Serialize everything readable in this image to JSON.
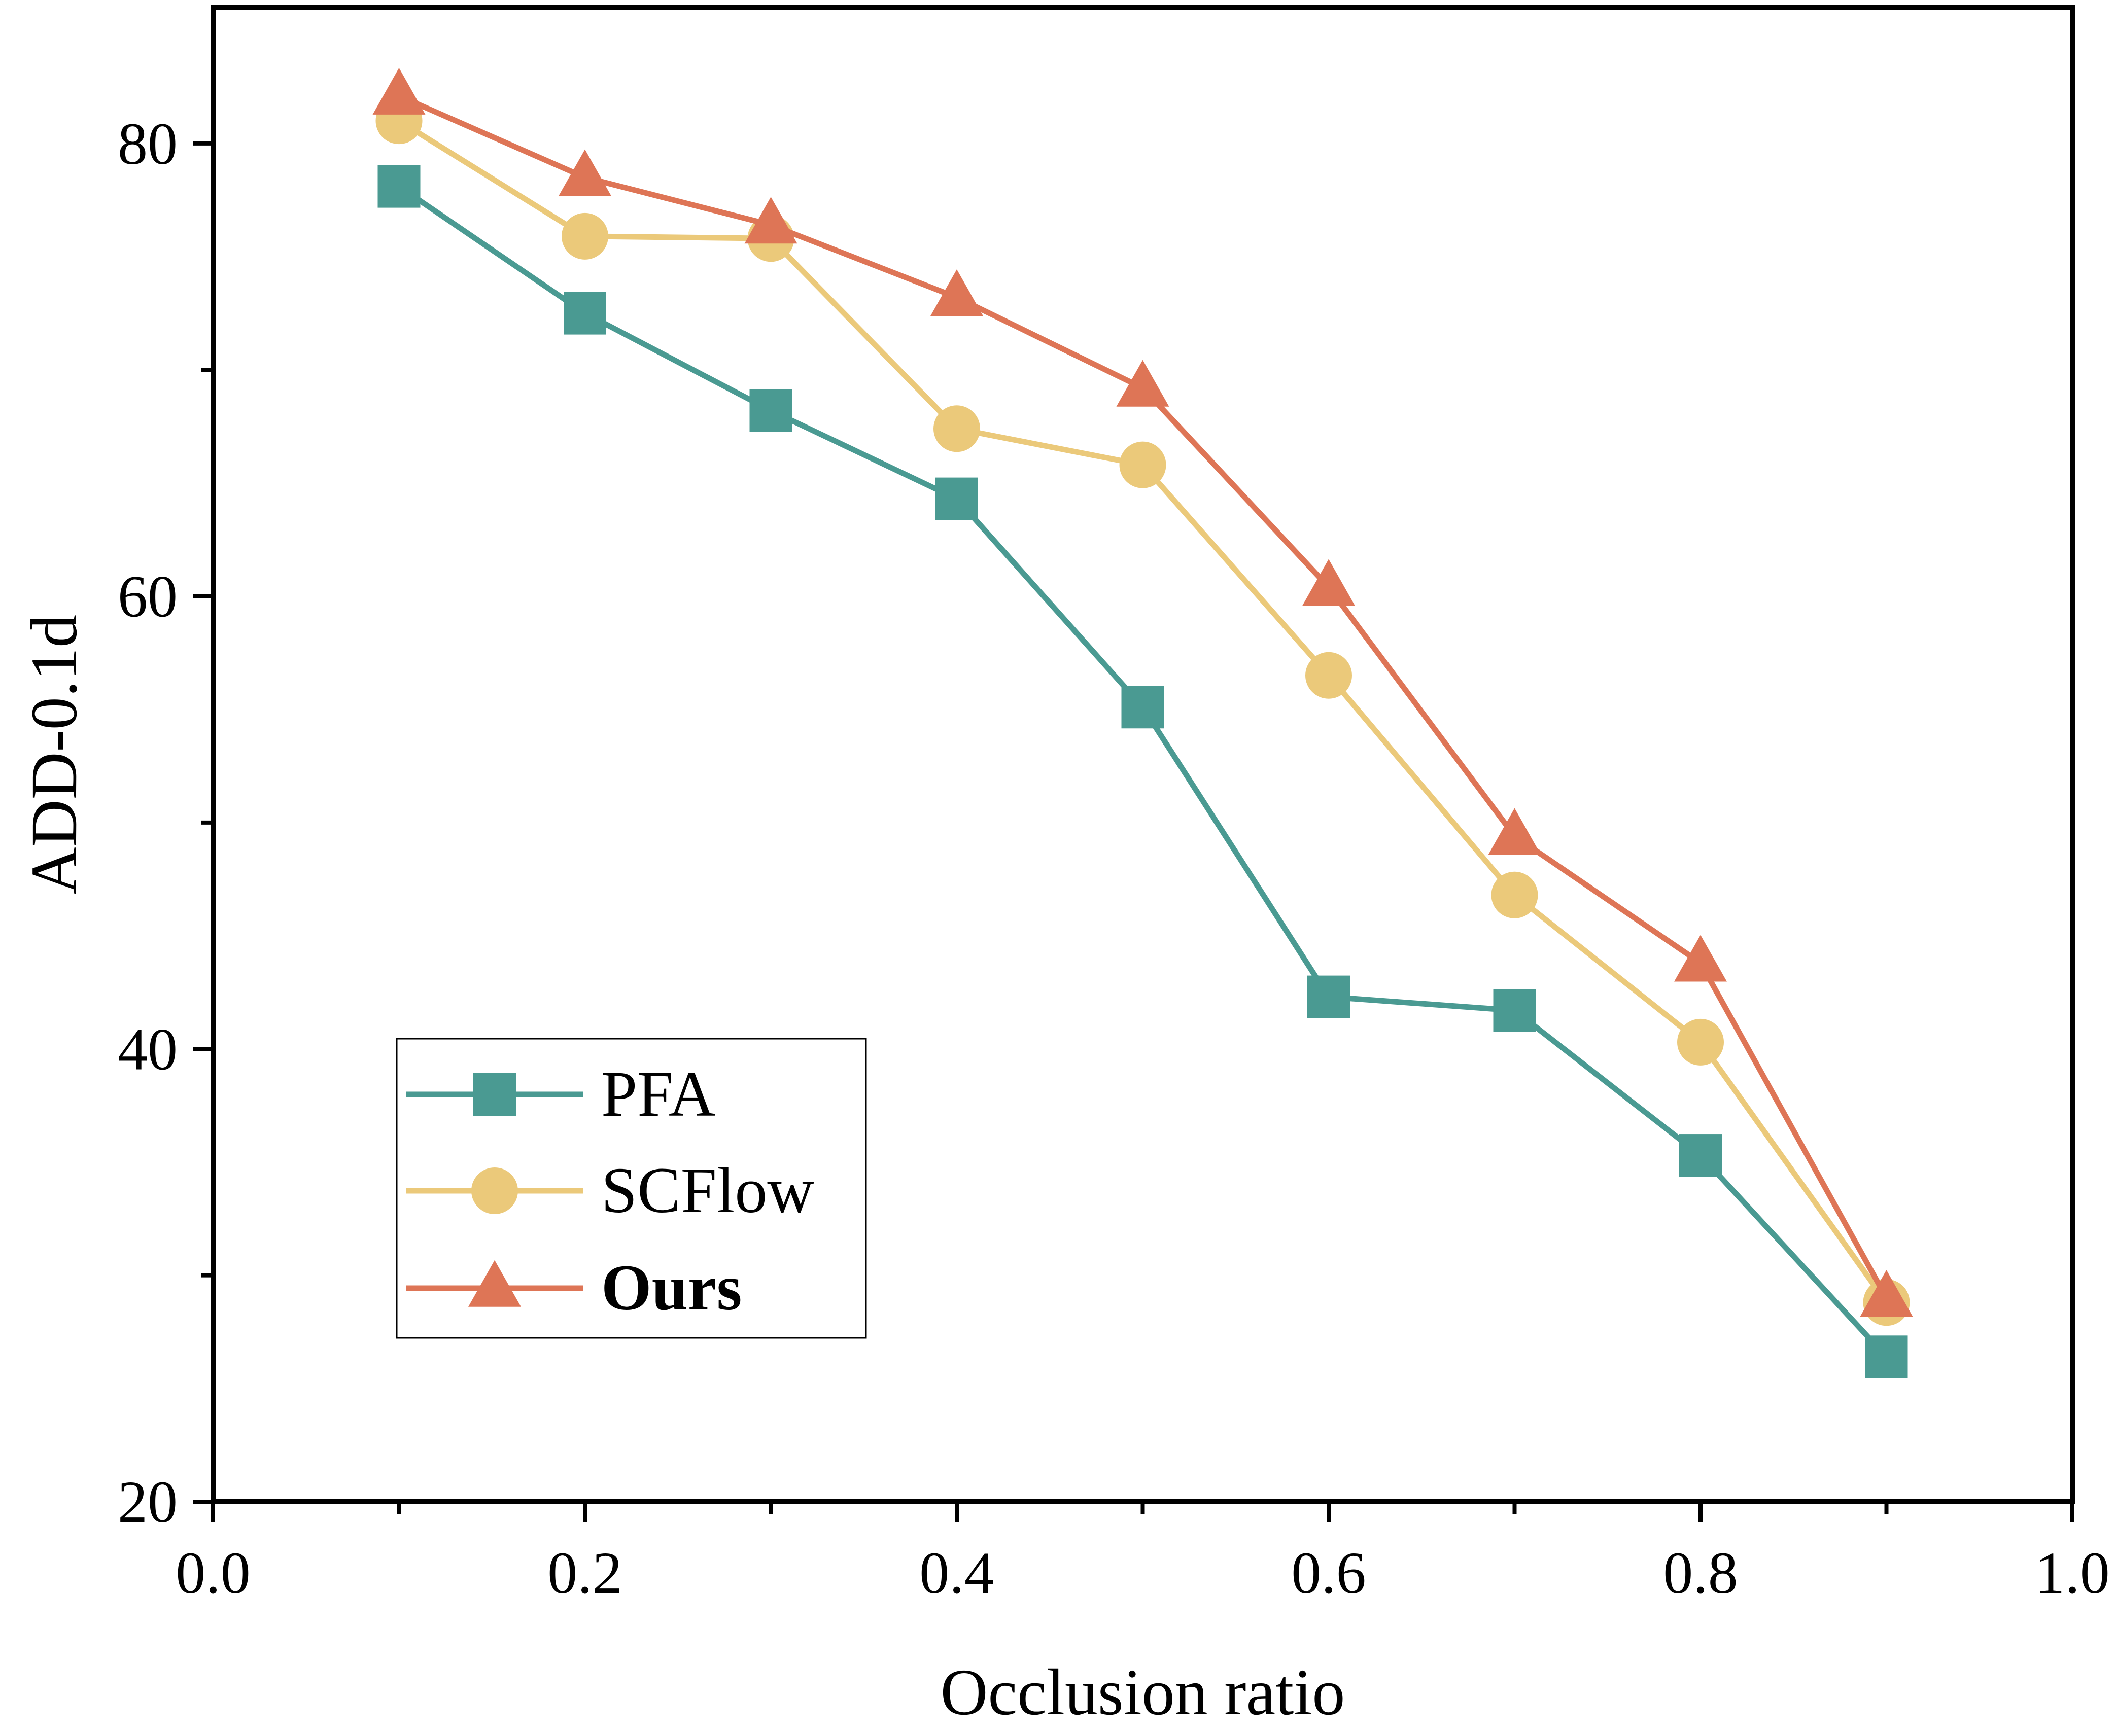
{
  "chart_data": {
    "type": "line",
    "xlabel": "Occlusion ratio",
    "ylabel": "ADD-0.1d",
    "xlim": [
      0.0,
      1.0
    ],
    "ylim": [
      20,
      86
    ],
    "x_ticks": [
      0.0,
      0.2,
      0.4,
      0.6,
      0.8,
      1.0
    ],
    "x_tick_labels": [
      "0.0",
      "0.2",
      "0.4",
      "0.6",
      "0.8",
      "1.0"
    ],
    "x_minor_ticks": [
      0.1,
      0.3,
      0.5,
      0.7,
      0.9
    ],
    "y_ticks": [
      20,
      40,
      60,
      80
    ],
    "y_tick_labels": [
      "20",
      "40",
      "60",
      "80"
    ],
    "y_minor_ticks": [
      30,
      50,
      70
    ],
    "grid": false,
    "legend_position": "bottom-left",
    "x": [
      0.1,
      0.2,
      0.3,
      0.4,
      0.5,
      0.6,
      0.7,
      0.8,
      0.9
    ],
    "series": [
      {
        "name": "PFA",
        "color": "#4a9a92",
        "marker": "square",
        "bold": false,
        "values": [
          78.1,
          72.5,
          68.2,
          64.3,
          55.1,
          42.3,
          41.7,
          35.3,
          26.4
        ]
      },
      {
        "name": "SCFlow",
        "color": "#ebc97a",
        "marker": "circle",
        "bold": false,
        "values": [
          81.0,
          75.9,
          75.8,
          67.4,
          65.8,
          56.5,
          46.8,
          40.3,
          28.8
        ]
      },
      {
        "name": "Ours",
        "color": "#de7556",
        "marker": "triangle",
        "bold": true,
        "values": [
          82.1,
          78.5,
          76.4,
          73.2,
          69.2,
          60.4,
          49.4,
          43.8,
          29.0
        ]
      }
    ]
  }
}
